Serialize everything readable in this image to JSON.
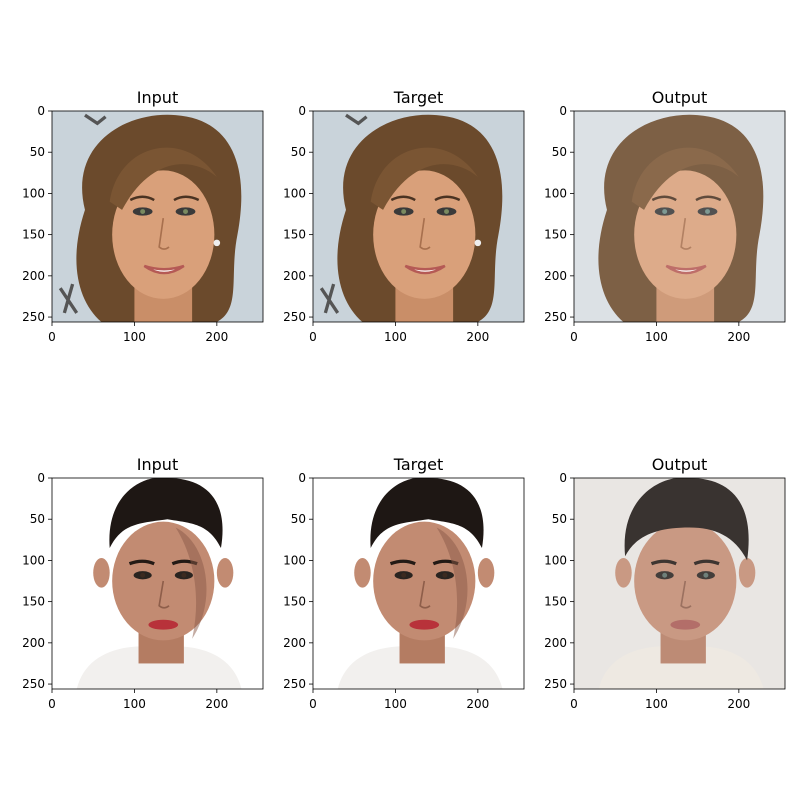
{
  "panels": [
    {
      "title": "Input",
      "subject": "woman-smiling",
      "version": "original"
    },
    {
      "title": "Target",
      "subject": "woman-smiling",
      "version": "original"
    },
    {
      "title": "Output",
      "subject": "woman-smiling",
      "version": "generated"
    },
    {
      "title": "Input",
      "subject": "young-man",
      "version": "original"
    },
    {
      "title": "Target",
      "subject": "young-man",
      "version": "original"
    },
    {
      "title": "Output",
      "subject": "young-man",
      "version": "generated"
    }
  ],
  "axes": {
    "x_ticks": [
      "0",
      "100",
      "200"
    ],
    "y_ticks": [
      "0",
      "50",
      "100",
      "150",
      "200",
      "250"
    ],
    "x_tick_values": [
      0,
      100,
      200
    ],
    "y_tick_values": [
      0,
      50,
      100,
      150,
      200,
      250
    ],
    "range": [
      0,
      256
    ]
  },
  "colors": {
    "woman_bg": "#c9d3da",
    "woman_hair": "#6b4a2c",
    "woman_skin": "#d9a07a",
    "man_bg": "#ffffff",
    "man_hair": "#1e1714",
    "man_skin": "#c28b72",
    "output_bg": "#e6e3e0",
    "lips_woman": "#b55a55",
    "lips_man": "#b8323a"
  }
}
